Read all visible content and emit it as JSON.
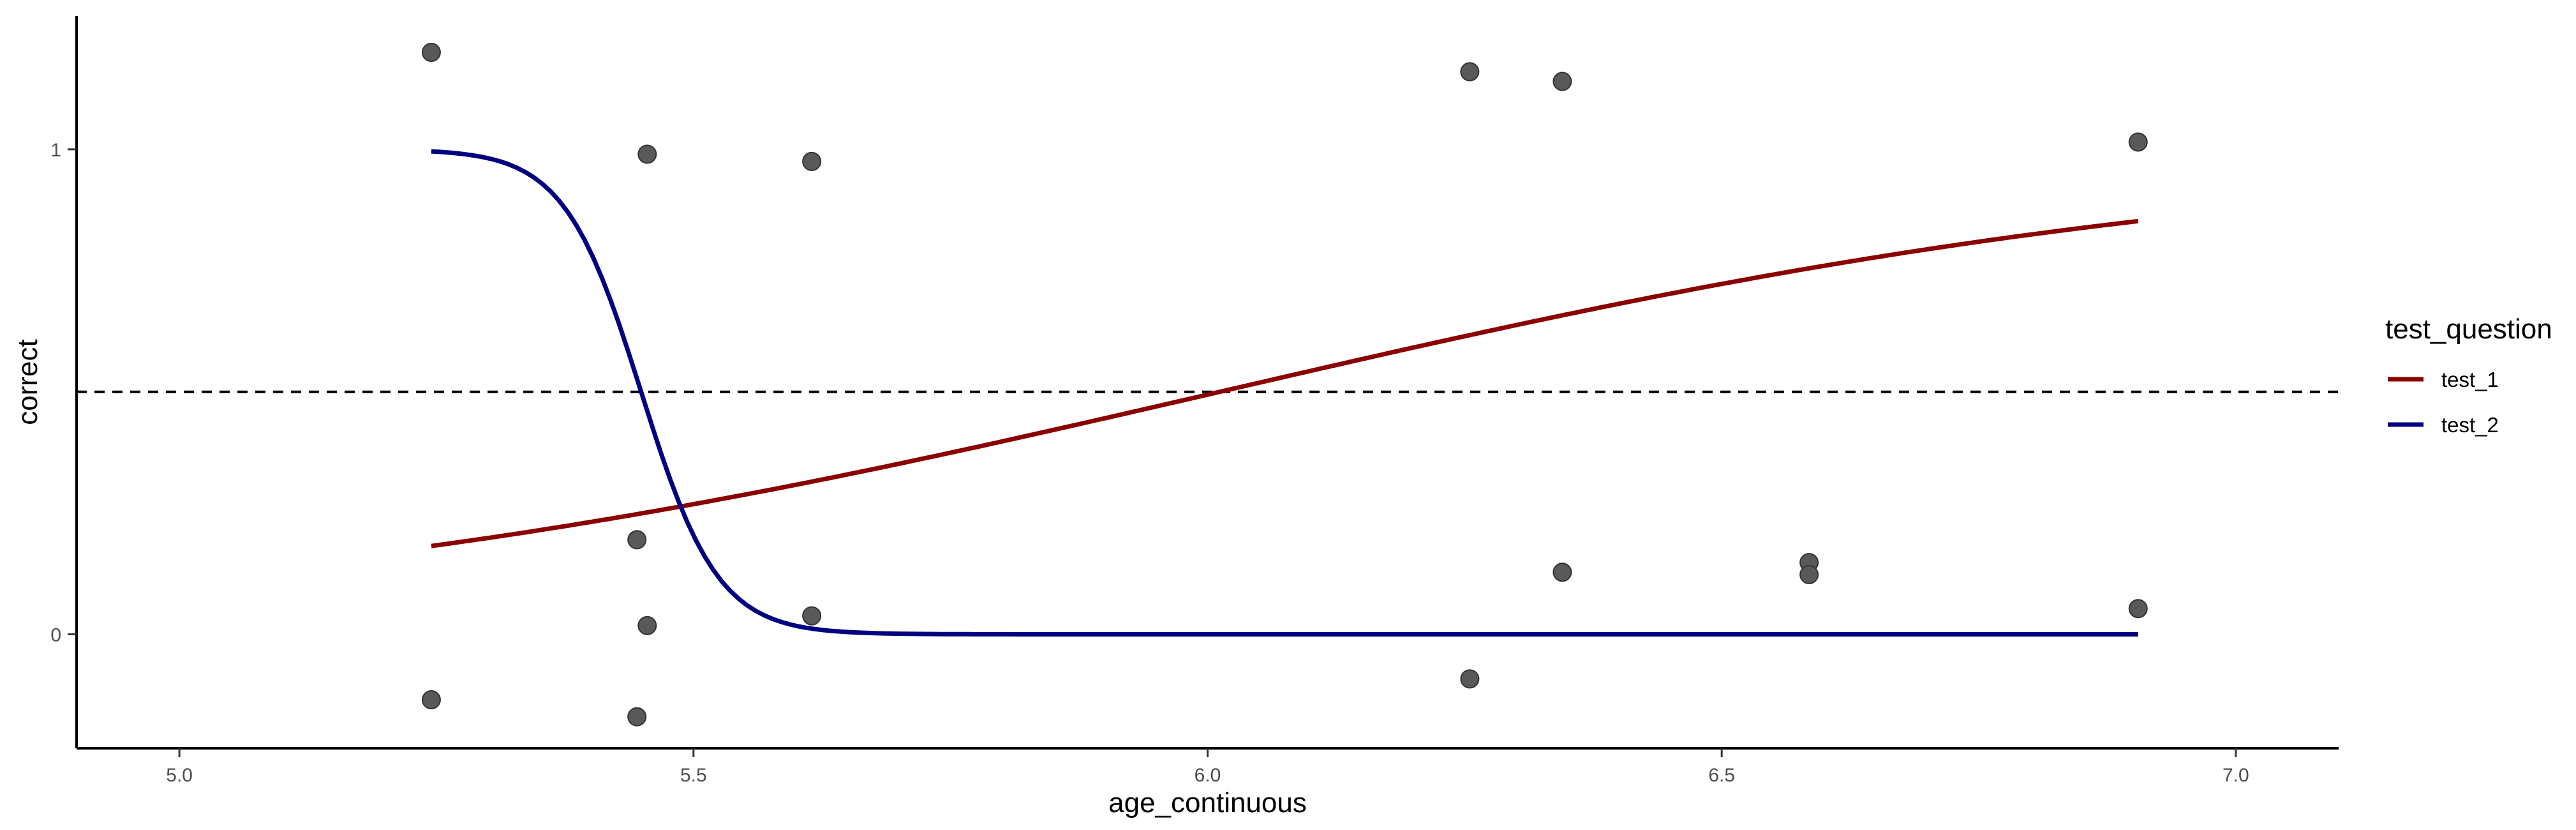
{
  "chart_data": {
    "type": "scatter",
    "title": "",
    "xlabel": "age_continuous",
    "ylabel": "correct",
    "xlim": [
      4.9,
      7.1
    ],
    "ylim": [
      -0.235,
      1.275
    ],
    "x_ticks": [
      5.0,
      5.5,
      6.0,
      6.5,
      7.0
    ],
    "x_tick_labels": [
      "5.0",
      "5.5",
      "6.0",
      "6.5",
      "7.0"
    ],
    "y_ticks": [
      0,
      1
    ],
    "y_tick_labels": [
      "0",
      "1"
    ],
    "grid": false,
    "reference_line": {
      "y": 0.5,
      "style": "dashed",
      "color": "#000000"
    },
    "points": {
      "color": "#595959",
      "x": [
        5.245,
        5.455,
        5.615,
        6.255,
        6.345,
        6.905,
        5.245,
        5.445,
        5.445,
        5.455,
        5.615,
        6.255,
        6.345,
        6.585,
        6.585,
        6.905
      ],
      "y": [
        1.2,
        0.99,
        0.975,
        1.16,
        1.14,
        1.015,
        -0.135,
        -0.17,
        0.195,
        0.018,
        0.038,
        -0.092,
        0.128,
        0.148,
        0.123,
        0.053
      ]
    },
    "series": [
      {
        "name": "test_1",
        "color": "#8b0000",
        "curve": "logistic",
        "x": [
          5.245,
          5.4,
          5.6,
          5.8,
          6.0,
          6.2,
          6.4,
          6.6,
          6.8,
          6.905
        ],
        "y": [
          0.182,
          0.231,
          0.308,
          0.398,
          0.496,
          0.594,
          0.684,
          0.761,
          0.824,
          0.852
        ]
      },
      {
        "name": "test_2",
        "color": "#000080",
        "curve": "logistic",
        "x": [
          5.245,
          5.35,
          5.4,
          5.45,
          5.5,
          5.55,
          5.6,
          5.7,
          5.8,
          6.0,
          6.5,
          6.905
        ],
        "y": [
          0.99,
          0.934,
          0.797,
          0.503,
          0.212,
          0.063,
          0.017,
          0.001,
          0.0,
          0.0,
          0.0,
          0.0
        ]
      }
    ],
    "legend": {
      "title": "test_question",
      "placement": "right",
      "entries": [
        "test_1",
        "test_2"
      ]
    }
  }
}
